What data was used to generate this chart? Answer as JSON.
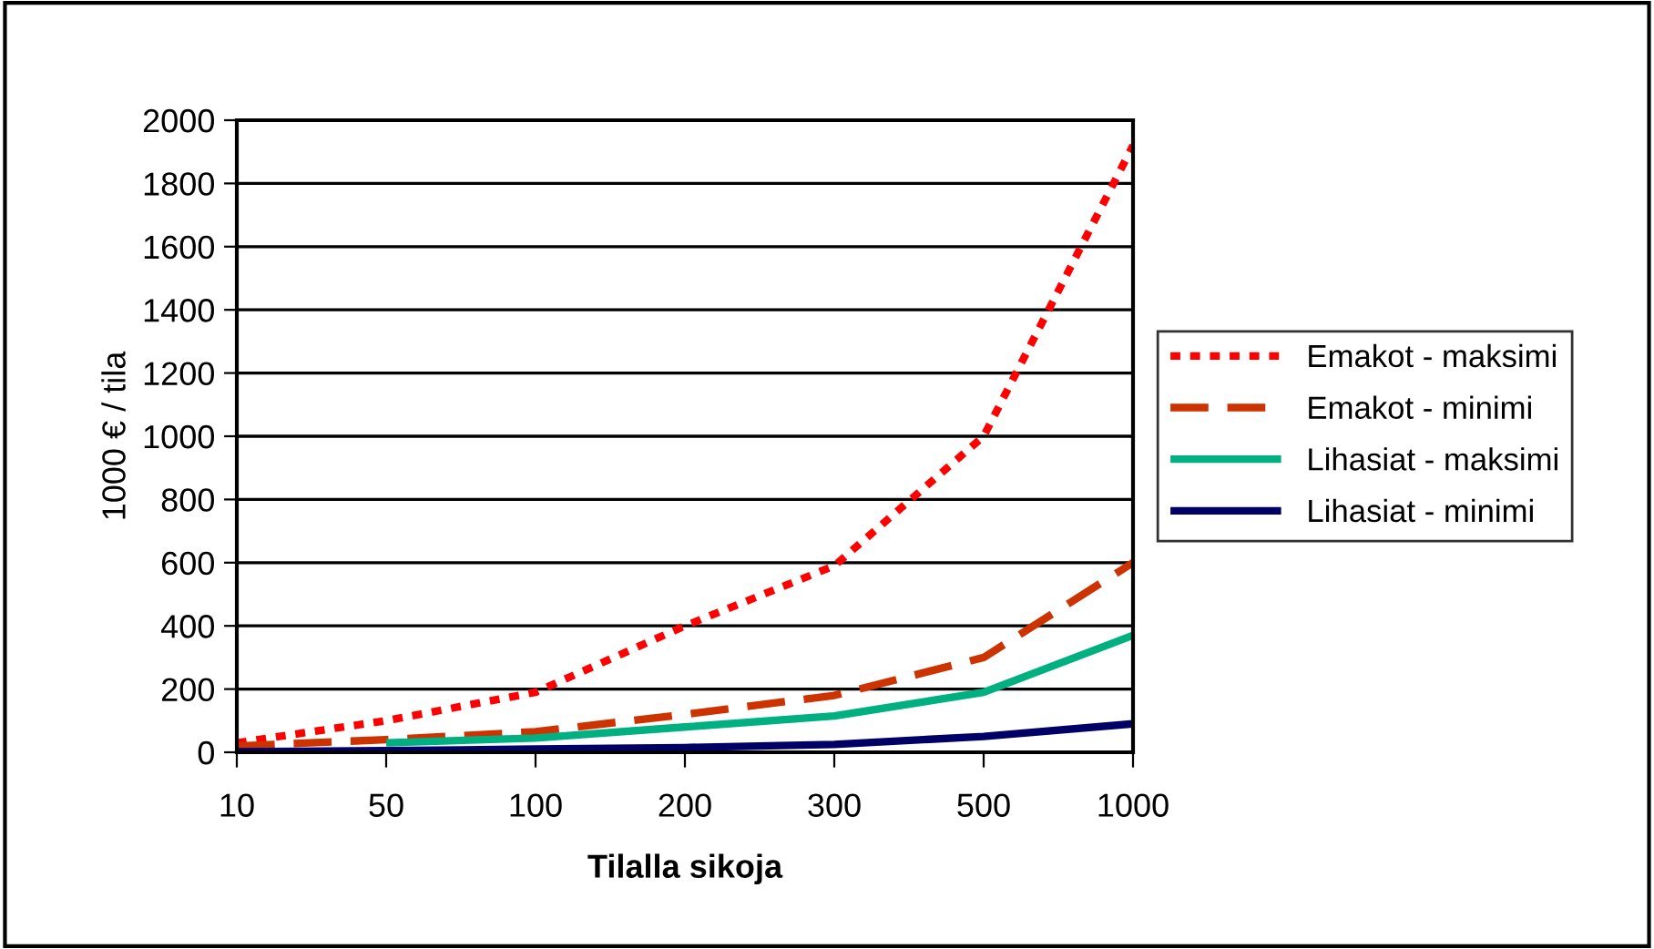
{
  "chart_data": {
    "type": "line",
    "xlabel": "Tilalla sikoja",
    "ylabel": "1000 € / tila",
    "categories": [
      "10",
      "50",
      "100",
      "200",
      "300",
      "500",
      "1000"
    ],
    "series": [
      {
        "name": "Emakot - maksimi",
        "color": "#ff0000",
        "line_style": "dotted",
        "values": [
          30,
          100,
          190,
          400,
          590,
          1000,
          1920
        ]
      },
      {
        "name": "Emakot - minimi",
        "color": "#cc3300",
        "line_style": "dashed",
        "values": [
          20,
          40,
          65,
          120,
          180,
          300,
          600
        ]
      },
      {
        "name": "Lihasiat - maksimi",
        "color": "#00b080",
        "line_style": "solid",
        "values": [
          null,
          30,
          45,
          80,
          115,
          190,
          370
        ]
      },
      {
        "name": "Lihasiat - minimi",
        "color": "#000066",
        "line_style": "solid",
        "values": [
          2,
          5,
          10,
          15,
          25,
          50,
          90
        ]
      }
    ],
    "ylim": [
      0,
      2000
    ],
    "yticks": [
      0,
      200,
      400,
      600,
      800,
      1000,
      1200,
      1400,
      1600,
      1800,
      2000
    ],
    "grid": "y",
    "legend": "right",
    "marker": "none"
  }
}
